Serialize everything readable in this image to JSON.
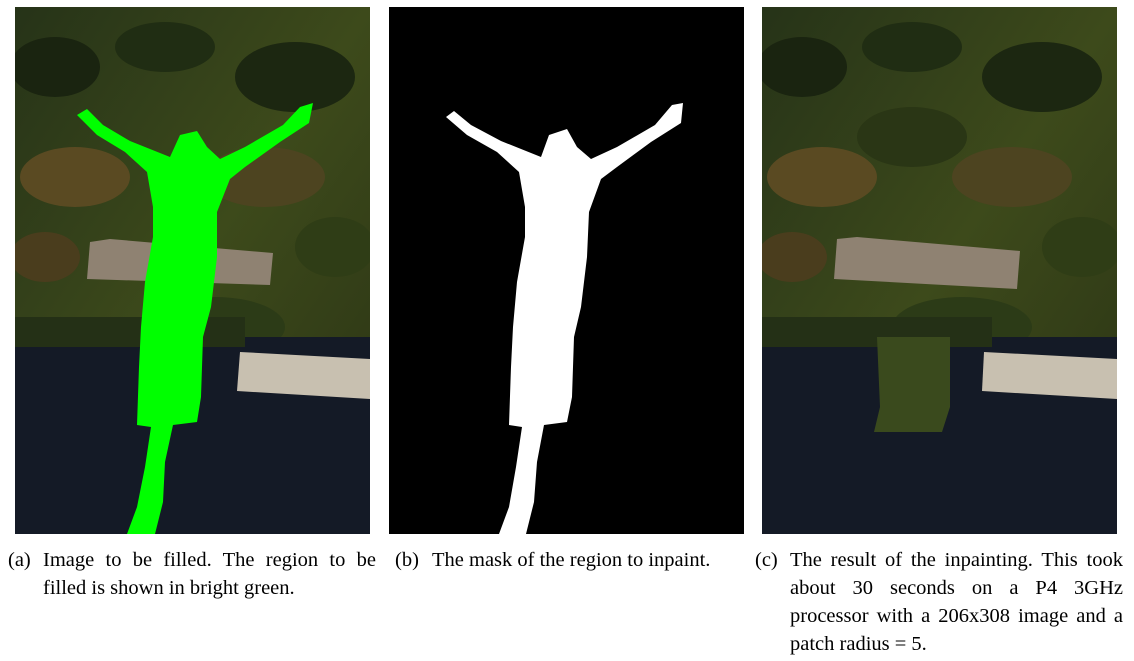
{
  "figure": {
    "panels": [
      {
        "id": "a",
        "label": "(a)",
        "caption": "Image to be filled. The region to be filled is shown in bright green.",
        "mask_color": "#00ff00"
      },
      {
        "id": "b",
        "label": "(b)",
        "caption": "The mask of the region to inpaint.",
        "mask_color": "#ffffff"
      },
      {
        "id": "c",
        "label": "(c)",
        "caption": "The result of the inpainting. This took about 30 seconds on a P4 3GHz processor with a 206x308 image and a patch radius = 5."
      }
    ]
  },
  "colors": {
    "foliage_dark": "#1f2a12",
    "foliage_mid": "#3b4a1c",
    "foliage_brown": "#5a4a22",
    "roof": "#8f8272",
    "water": "#141a26",
    "dock": "#c8c0b0"
  }
}
